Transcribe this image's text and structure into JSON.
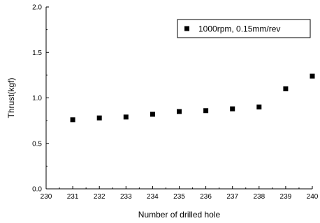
{
  "chart_data": {
    "type": "scatter",
    "xlabel": "Number of drilled hole",
    "ylabel": "Thrust(kgf)",
    "xlim": [
      230,
      240
    ],
    "ylim": [
      0.0,
      2.0
    ],
    "x_ticks": [
      "230",
      "231",
      "232",
      "233",
      "234",
      "235",
      "236",
      "237",
      "238",
      "239",
      "240"
    ],
    "y_ticks": [
      "0.0",
      "0.5",
      "1.0",
      "1.5",
      "2.0"
    ],
    "grid": false,
    "legend_position": "top-right",
    "marker": "square",
    "marker_color": "#000000",
    "series": [
      {
        "name": "1000rpm, 0.15mm/rev",
        "x": [
          231,
          232,
          233,
          234,
          235,
          236,
          237,
          238,
          239,
          240
        ],
        "y": [
          0.76,
          0.78,
          0.79,
          0.82,
          0.85,
          0.86,
          0.88,
          0.9,
          1.1,
          1.24
        ]
      }
    ]
  }
}
